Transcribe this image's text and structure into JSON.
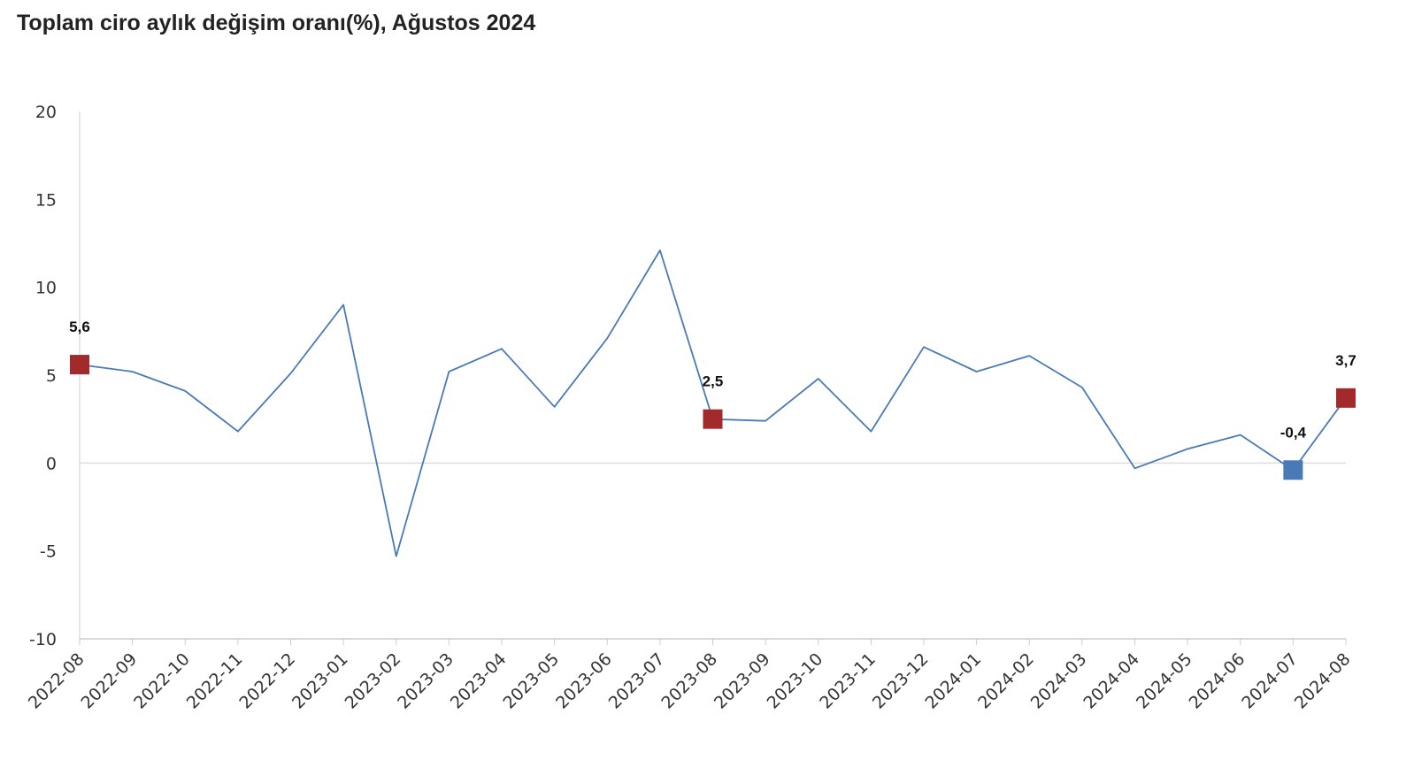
{
  "chart_data": {
    "type": "line",
    "title": "Toplam ciro aylık değişim oranı(%), Ağustos 2024",
    "xlabel": "",
    "ylabel": "",
    "ylim": [
      -10,
      20
    ],
    "yticks": [
      "20",
      "15",
      "10",
      "5",
      "0",
      "-5",
      "-10"
    ],
    "categories": [
      "2022-08",
      "2022-09",
      "2022-10",
      "2022-11",
      "2022-12",
      "2023-01",
      "2023-02",
      "2023-03",
      "2023-04",
      "2023-05",
      "2023-06",
      "2023-07",
      "2023-08",
      "2023-09",
      "2023-10",
      "2023-11",
      "2023-12",
      "2024-01",
      "2024-02",
      "2024-03",
      "2024-04",
      "2024-05",
      "2024-06",
      "2024-07",
      "2024-08"
    ],
    "series": [
      {
        "color": "#4a7ab5",
        "values": [
          5.6,
          5.2,
          4.1,
          1.8,
          5.1,
          9.0,
          -5.3,
          5.2,
          6.5,
          3.2,
          7.1,
          12.1,
          2.5,
          2.4,
          4.8,
          1.8,
          6.6,
          5.2,
          6.1,
          4.3,
          -0.3,
          0.8,
          1.6,
          -0.4,
          3.7
        ]
      }
    ],
    "highlights": [
      {
        "index": 0,
        "label": "5,6",
        "color": "#a32a2a"
      },
      {
        "index": 12,
        "label": "2,5",
        "color": "#a32a2a"
      },
      {
        "index": 23,
        "label": "-0,4",
        "color": "#4a7ab5"
      },
      {
        "index": 24,
        "label": "3,7",
        "color": "#a32a2a"
      }
    ],
    "grid": false,
    "zero_line": true,
    "legend": "none"
  }
}
